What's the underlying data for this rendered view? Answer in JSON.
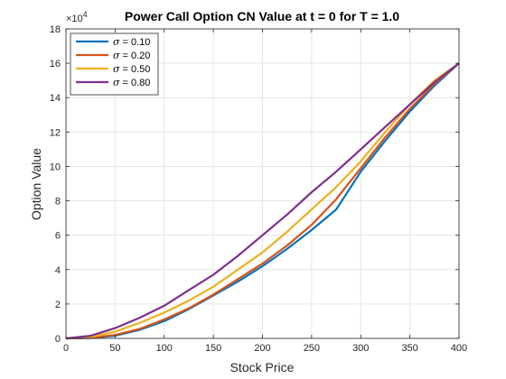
{
  "chart_data": {
    "type": "line",
    "title": "Power Call Option CN Value at t = 0 for T = 1.0",
    "xlabel": "Stock Price",
    "ylabel": "Option Value",
    "xlim": [
      0,
      400
    ],
    "ylim": [
      0,
      18
    ],
    "y_exponent_label": "×10",
    "y_exponent_power": "4",
    "xticks": [
      0,
      50,
      100,
      150,
      200,
      250,
      300,
      350,
      400
    ],
    "yticks": [
      0,
      2,
      4,
      6,
      8,
      10,
      12,
      14,
      16,
      18
    ],
    "grid": true,
    "legend_position": "top-left",
    "x": [
      0,
      25,
      50,
      75,
      100,
      125,
      150,
      175,
      200,
      225,
      250,
      275,
      300,
      325,
      350,
      375,
      400
    ],
    "series": [
      {
        "name": "σ = 0.10",
        "sigma_symbol": "σ",
        "sigma_value": "= 0.10",
        "color": "#0072BD",
        "values": [
          0,
          0.02,
          0.15,
          0.5,
          1.0,
          1.7,
          2.5,
          3.3,
          4.2,
          5.2,
          6.3,
          7.5,
          9.7,
          11.5,
          13.2,
          14.7,
          16.0
        ]
      },
      {
        "name": "σ = 0.20",
        "sigma_symbol": "σ",
        "sigma_value": "= 0.20",
        "color": "#D95319",
        "values": [
          0,
          0.03,
          0.2,
          0.55,
          1.1,
          1.75,
          2.55,
          3.45,
          4.35,
          5.4,
          6.6,
          8.1,
          9.9,
          11.7,
          13.35,
          14.8,
          16.0
        ]
      },
      {
        "name": "σ = 0.50",
        "sigma_symbol": "σ",
        "sigma_value": "= 0.50",
        "color": "#EDB120",
        "values": [
          0,
          0.08,
          0.4,
          0.9,
          1.5,
          2.2,
          3.0,
          4.0,
          5.0,
          6.2,
          7.5,
          8.8,
          10.3,
          12.0,
          13.6,
          15.0,
          16.0
        ]
      },
      {
        "name": "σ = 0.80",
        "sigma_symbol": "σ",
        "sigma_value": "= 0.80",
        "color": "#7E2F8E",
        "values": [
          0,
          0.15,
          0.6,
          1.2,
          1.9,
          2.8,
          3.7,
          4.8,
          6.0,
          7.2,
          8.5,
          9.7,
          11.0,
          12.3,
          13.6,
          14.9,
          16.0
        ]
      }
    ]
  }
}
